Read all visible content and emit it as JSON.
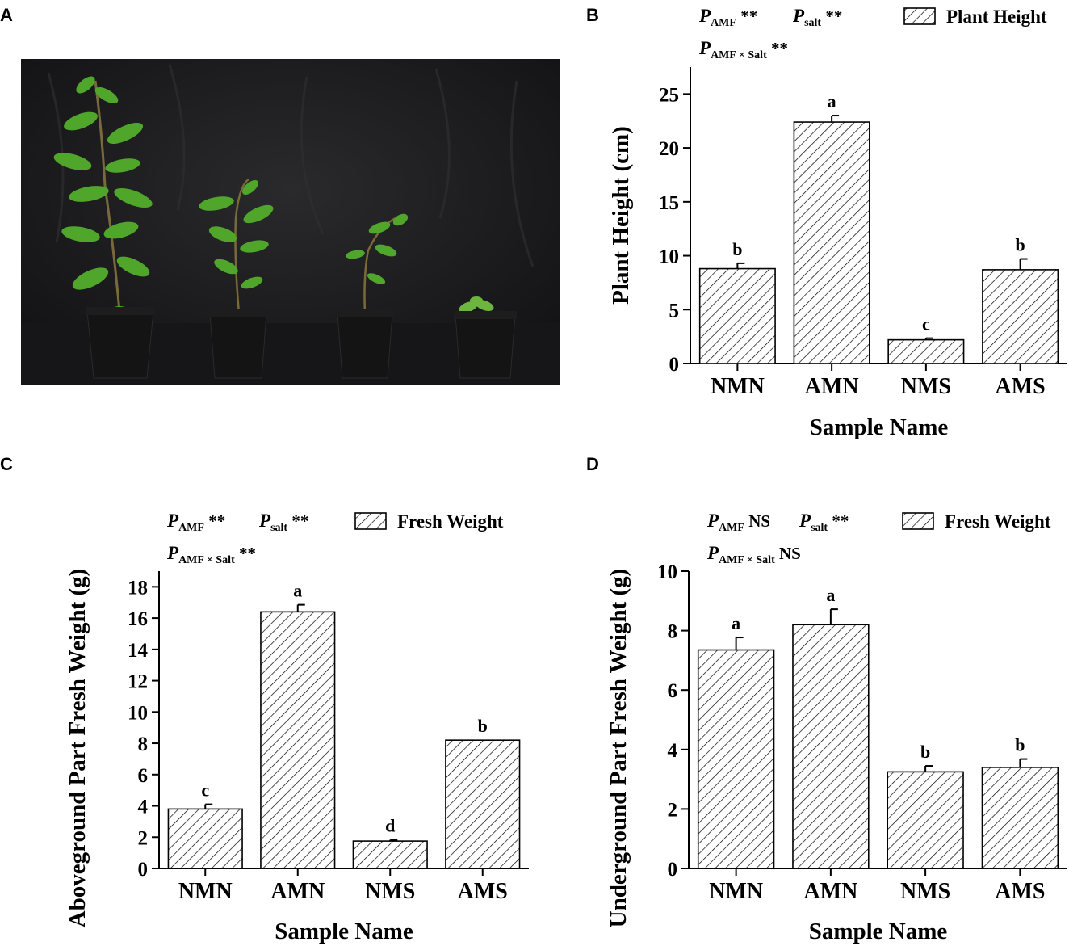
{
  "panel_labels": [
    "A",
    "B",
    "C",
    "D"
  ],
  "photo": {
    "description_icon": "plant-photo",
    "plants": 4
  },
  "colors": {
    "axis": "#000000",
    "bar_fill": "#ffffff",
    "hatch": "#000000",
    "photo_bg": "#1c1c1e",
    "leaf": "#4fa62a",
    "pot": "#141414"
  },
  "chart_data": [
    {
      "panel": "B",
      "type": "bar",
      "categories": [
        "NMN",
        "AMN",
        "NMS",
        "AMS"
      ],
      "series": [
        {
          "name": "Plant Height",
          "values": [
            8.8,
            22.4,
            2.2,
            8.7
          ],
          "errors": [
            0.5,
            0.6,
            0.15,
            1.0
          ],
          "letters": [
            "b",
            "a",
            "c",
            "b"
          ]
        }
      ],
      "xlabel": "Sample Name",
      "ylabel": "Plant Height (cm)",
      "ylim": [
        0,
        27.5
      ],
      "yticks": [
        0,
        5,
        10,
        15,
        20,
        25
      ],
      "annotation": {
        "p_amf": "**",
        "p_salt": "**",
        "p_int": "**"
      },
      "legend": "Plant Height",
      "legend_position": "top-right",
      "grid": false
    },
    {
      "panel": "C",
      "type": "bar",
      "categories": [
        "NMN",
        "AMN",
        "NMS",
        "AMS"
      ],
      "series": [
        {
          "name": "Fresh Weight",
          "values": [
            3.8,
            16.4,
            1.75,
            8.2
          ],
          "errors": [
            0.3,
            0.45,
            0.08,
            0.0
          ],
          "letters": [
            "c",
            "a",
            "d",
            "b"
          ]
        }
      ],
      "xlabel": "Sample Name",
      "ylabel": "Aboveground Part Fresh Weight (g)",
      "ylim": [
        0,
        19
      ],
      "yticks": [
        0,
        2,
        4,
        6,
        8,
        10,
        12,
        14,
        16,
        18
      ],
      "annotation": {
        "p_amf": "**",
        "p_salt": "**",
        "p_int": "**"
      },
      "legend": "Fresh Weight",
      "legend_position": "top-right",
      "grid": false
    },
    {
      "panel": "D",
      "type": "bar",
      "categories": [
        "NMN",
        "AMN",
        "NMS",
        "AMS"
      ],
      "series": [
        {
          "name": "Fresh Weight",
          "values": [
            7.35,
            8.2,
            3.25,
            3.4
          ],
          "errors": [
            0.42,
            0.52,
            0.2,
            0.28
          ],
          "letters": [
            "a",
            "a",
            "b",
            "b"
          ]
        }
      ],
      "xlabel": "Sample Name",
      "ylabel": "Underground Part Fresh Weight (g)",
      "ylim": [
        0,
        10
      ],
      "yticks": [
        0,
        2,
        4,
        6,
        8,
        10
      ],
      "annotation": {
        "p_amf": "NS",
        "p_salt": "**",
        "p_int": "NS"
      },
      "legend": "Fresh Weight",
      "legend_position": "top-right",
      "grid": false
    }
  ],
  "p_symbols": {
    "p": "P",
    "amf": "AMF",
    "salt": "salt",
    "interaction": "AMF × Salt"
  }
}
